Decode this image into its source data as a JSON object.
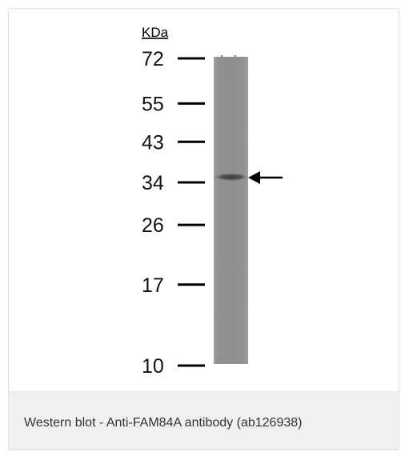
{
  "figure": {
    "unit_label": "KDa",
    "markers": [
      {
        "label": "72",
        "kda": 72
      },
      {
        "label": "55",
        "kda": 55
      },
      {
        "label": "43",
        "kda": 43
      },
      {
        "label": "34",
        "kda": 34
      },
      {
        "label": "26",
        "kda": 26
      },
      {
        "label": "17",
        "kda": 17
      },
      {
        "label": "10",
        "kda": 10
      }
    ],
    "band": {
      "kda": 35
    },
    "colors": {
      "lane": "#8f8f8f",
      "band": "#4a4a4a",
      "marker": "#000000"
    }
  },
  "caption": {
    "text": "Western blot - Anti-FAM84A antibody (ab126938)"
  }
}
